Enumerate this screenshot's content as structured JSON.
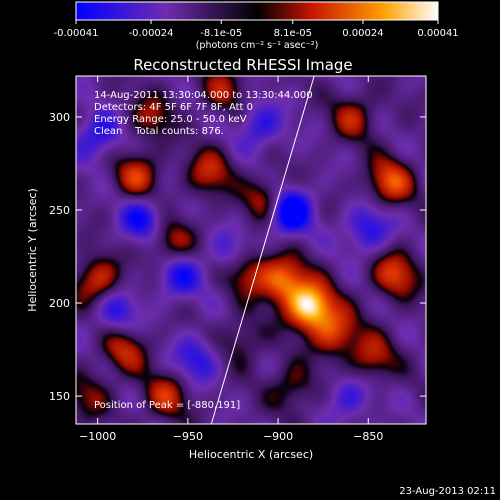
{
  "chart_data": {
    "type": "heatmap",
    "title": "Reconstructed RHESSI Image",
    "xlabel": "Heliocentric X (arcsec)",
    "ylabel": "Heliocentric Y (arcsec)",
    "xlim": [
      -1012,
      -818
    ],
    "ylim": [
      135,
      322
    ],
    "x_ticks": [
      -1000,
      -950,
      -900,
      -850
    ],
    "y_ticks": [
      150,
      200,
      250,
      300
    ],
    "colorbar": {
      "min": -0.00041,
      "max": 0.00041,
      "tick_values": [
        -0.00041,
        -0.00024,
        -8.1e-05,
        8.1e-05,
        0.00024,
        0.00041
      ],
      "tick_labels": [
        "-0.00041",
        "-0.00024",
        "-8.1e-05",
        "8.1e-05",
        "0.00024",
        "0.00041"
      ],
      "units_label": "(photons cm⁻² s⁻¹ asec⁻²)"
    },
    "annotations": {
      "time_range": "14-Aug-2011 13:30:04.000 to 13:30:44.000",
      "detectors": "Detectors: 4F 5F 6F 7F 8F, Att 0",
      "energy_range": "Energy Range: 25.0 - 50.0 keV",
      "algorithm_counts": "Clean    Total counts: 876.",
      "peak_position": "Position of Peak = [-880,191]"
    },
    "peak": [
      -880,
      191
    ],
    "limb_line": [
      [
        -937,
        135
      ],
      [
        -880,
        322
      ]
    ],
    "sources": [
      {
        "x": -882,
        "y": 198,
        "amp": 1.0
      },
      {
        "x": -897,
        "y": 212,
        "amp": 0.7
      },
      {
        "x": -868,
        "y": 184,
        "amp": 0.55
      },
      {
        "x": -918,
        "y": 218,
        "amp": 0.55
      },
      {
        "x": -905,
        "y": 255,
        "amp": 0.6
      },
      {
        "x": -938,
        "y": 270,
        "amp": 0.45
      },
      {
        "x": -960,
        "y": 232,
        "amp": 0.45
      },
      {
        "x": -978,
        "y": 268,
        "amp": 0.5
      },
      {
        "x": -1000,
        "y": 212,
        "amp": 0.55
      },
      {
        "x": -985,
        "y": 175,
        "amp": 0.45
      },
      {
        "x": -962,
        "y": 150,
        "amp": 0.45
      },
      {
        "x": -838,
        "y": 265,
        "amp": 0.6
      },
      {
        "x": -835,
        "y": 215,
        "amp": 0.55
      },
      {
        "x": -848,
        "y": 170,
        "amp": 0.45
      },
      {
        "x": -858,
        "y": 300,
        "amp": 0.4
      },
      {
        "x": -930,
        "y": 315,
        "amp": 0.35
      },
      {
        "x": -892,
        "y": 155,
        "amp": 0.35
      },
      {
        "x": -920,
        "y": 180,
        "amp": 0.3
      },
      {
        "x": -970,
        "y": 300,
        "amp": 0.35
      },
      {
        "x": -1005,
        "y": 150,
        "amp": 0.3
      }
    ],
    "holes": [
      {
        "x": -895,
        "y": 250,
        "amp": -0.9
      },
      {
        "x": -975,
        "y": 245,
        "amp": -0.5
      },
      {
        "x": -955,
        "y": 215,
        "amp": -0.45
      },
      {
        "x": -925,
        "y": 225,
        "amp": -0.4
      },
      {
        "x": -850,
        "y": 240,
        "amp": -0.45
      },
      {
        "x": -910,
        "y": 295,
        "amp": -0.4
      },
      {
        "x": -1000,
        "y": 290,
        "amp": -0.45
      },
      {
        "x": -945,
        "y": 170,
        "amp": -0.4
      },
      {
        "x": -860,
        "y": 150,
        "amp": -0.35
      },
      {
        "x": -990,
        "y": 195,
        "amp": -0.4
      }
    ]
  },
  "footer": {
    "timestamp": "23-Aug-2013 02:11"
  }
}
